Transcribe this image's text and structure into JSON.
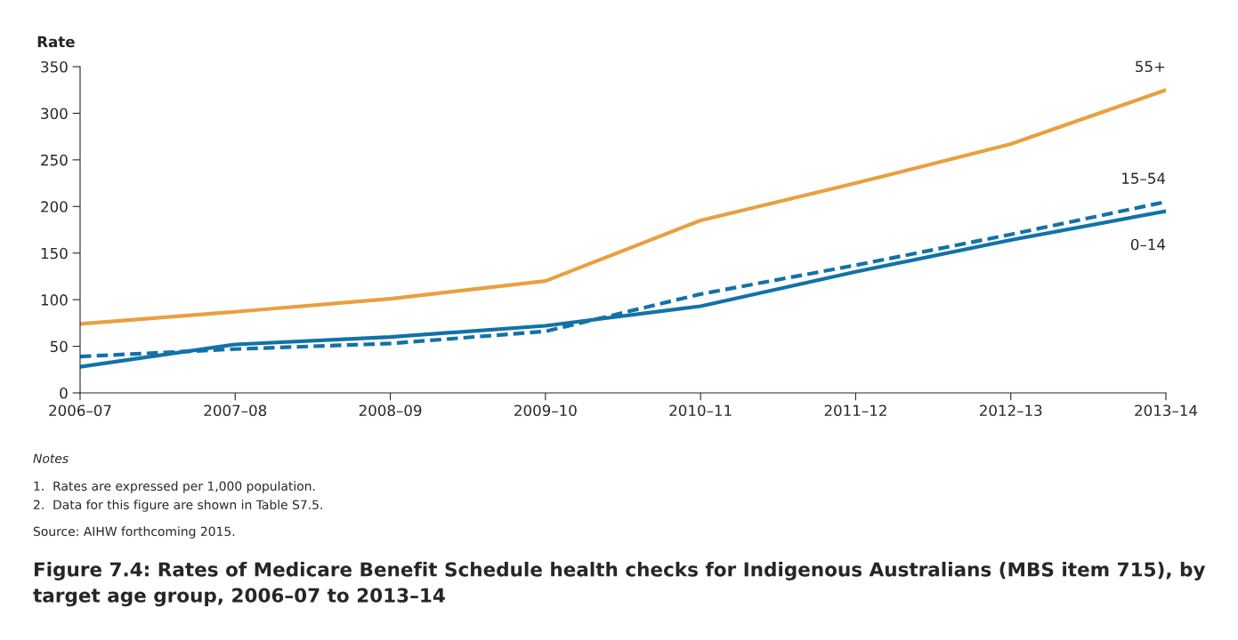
{
  "chart_data": {
    "type": "line",
    "title": "Figure 7.4: Rates of Medicare Benefit Schedule health checks for Indigenous Australians (MBS item 715), by target age group, 2006–07 to 2013–14",
    "ylabel": "Rate",
    "categories": [
      "2006–07",
      "2007–08",
      "2008–09",
      "2009–10",
      "2010–11",
      "2011–12",
      "2012–13",
      "2013–14"
    ],
    "series": [
      {
        "name": "55+",
        "color": "#e8a040",
        "line_style": "solid",
        "values": [
          74,
          87,
          101,
          120,
          185,
          225,
          267,
          325
        ]
      },
      {
        "name": "15–54",
        "color": "#1272a8",
        "line_style": "dashed",
        "values": [
          39,
          47,
          53,
          66,
          106,
          137,
          170,
          205
        ]
      },
      {
        "name": "0–14",
        "color": "#1272a8",
        "line_style": "solid",
        "values": [
          28,
          52,
          60,
          72,
          93,
          130,
          164,
          195
        ]
      }
    ],
    "ylim": [
      0,
      350
    ],
    "yticks": [
      0,
      50,
      100,
      150,
      200,
      250,
      300,
      350
    ],
    "grid": false,
    "legend": false,
    "marker": "none",
    "annotations": [
      "Notes",
      "1.  Rates are expressed per 1,000 population.",
      "2.  Data for this figure are shown in Table S7.5.",
      "Source: AIHW forthcoming 2015."
    ]
  }
}
